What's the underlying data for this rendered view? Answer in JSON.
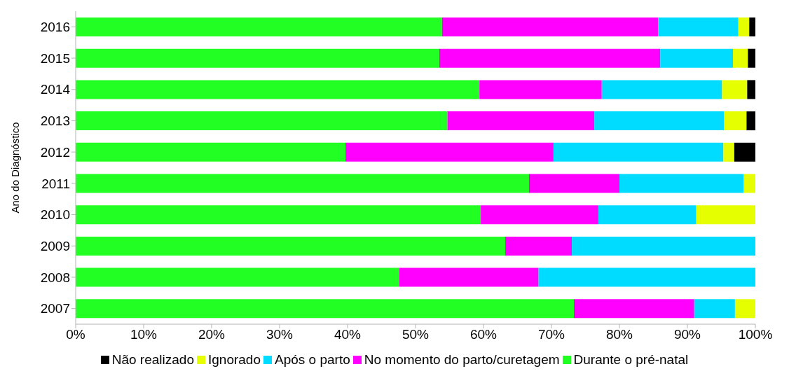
{
  "chart_data": {
    "type": "bar",
    "orientation": "horizontal",
    "stacked": true,
    "ylabel": "Ano do Diagnóstico",
    "categories": [
      "2016",
      "2015",
      "2014",
      "2013",
      "2012",
      "2011",
      "2010",
      "2009",
      "2008",
      "2007"
    ],
    "series": [
      {
        "name": "Durante o pré-natal",
        "color": "#22ff22",
        "values": [
          53.9,
          53.5,
          59.4,
          54.7,
          39.7,
          66.7,
          59.6,
          63.2,
          47.6,
          73.3
        ]
      },
      {
        "name": "No momento do parto/curetagem",
        "color": "#ff00ff",
        "values": [
          31.8,
          32.5,
          18.0,
          21.6,
          30.6,
          13.3,
          17.3,
          9.8,
          20.5,
          17.7
        ]
      },
      {
        "name": "Após o parto",
        "color": "#00dcff",
        "values": [
          11.8,
          10.7,
          17.7,
          19.1,
          25.0,
          18.3,
          14.4,
          27.0,
          31.9,
          6.0
        ]
      },
      {
        "name": "Ignorado",
        "color": "#e6ff00",
        "values": [
          1.6,
          2.2,
          3.7,
          3.3,
          1.6,
          1.7,
          8.7,
          null,
          null,
          3.0
        ]
      },
      {
        "name": "Não realizado",
        "color": "#000000",
        "values": [
          0.9,
          1.1,
          1.2,
          1.3,
          3.1,
          null,
          null,
          null,
          null,
          null
        ]
      }
    ],
    "xlim": [
      0,
      100
    ],
    "xticks": [
      {
        "value": 0,
        "label": "0%"
      },
      {
        "value": 10,
        "label": "10%"
      },
      {
        "value": 20,
        "label": "20%"
      },
      {
        "value": 30,
        "label": "30%"
      },
      {
        "value": 40,
        "label": "40%"
      },
      {
        "value": 50,
        "label": "50%"
      },
      {
        "value": 60,
        "label": "60%"
      },
      {
        "value": 70,
        "label": "70%"
      },
      {
        "value": 80,
        "label": "80%"
      },
      {
        "value": 90,
        "label": "90%"
      },
      {
        "value": 100,
        "label": "100%"
      }
    ],
    "grid": false,
    "legend": "bottom"
  }
}
